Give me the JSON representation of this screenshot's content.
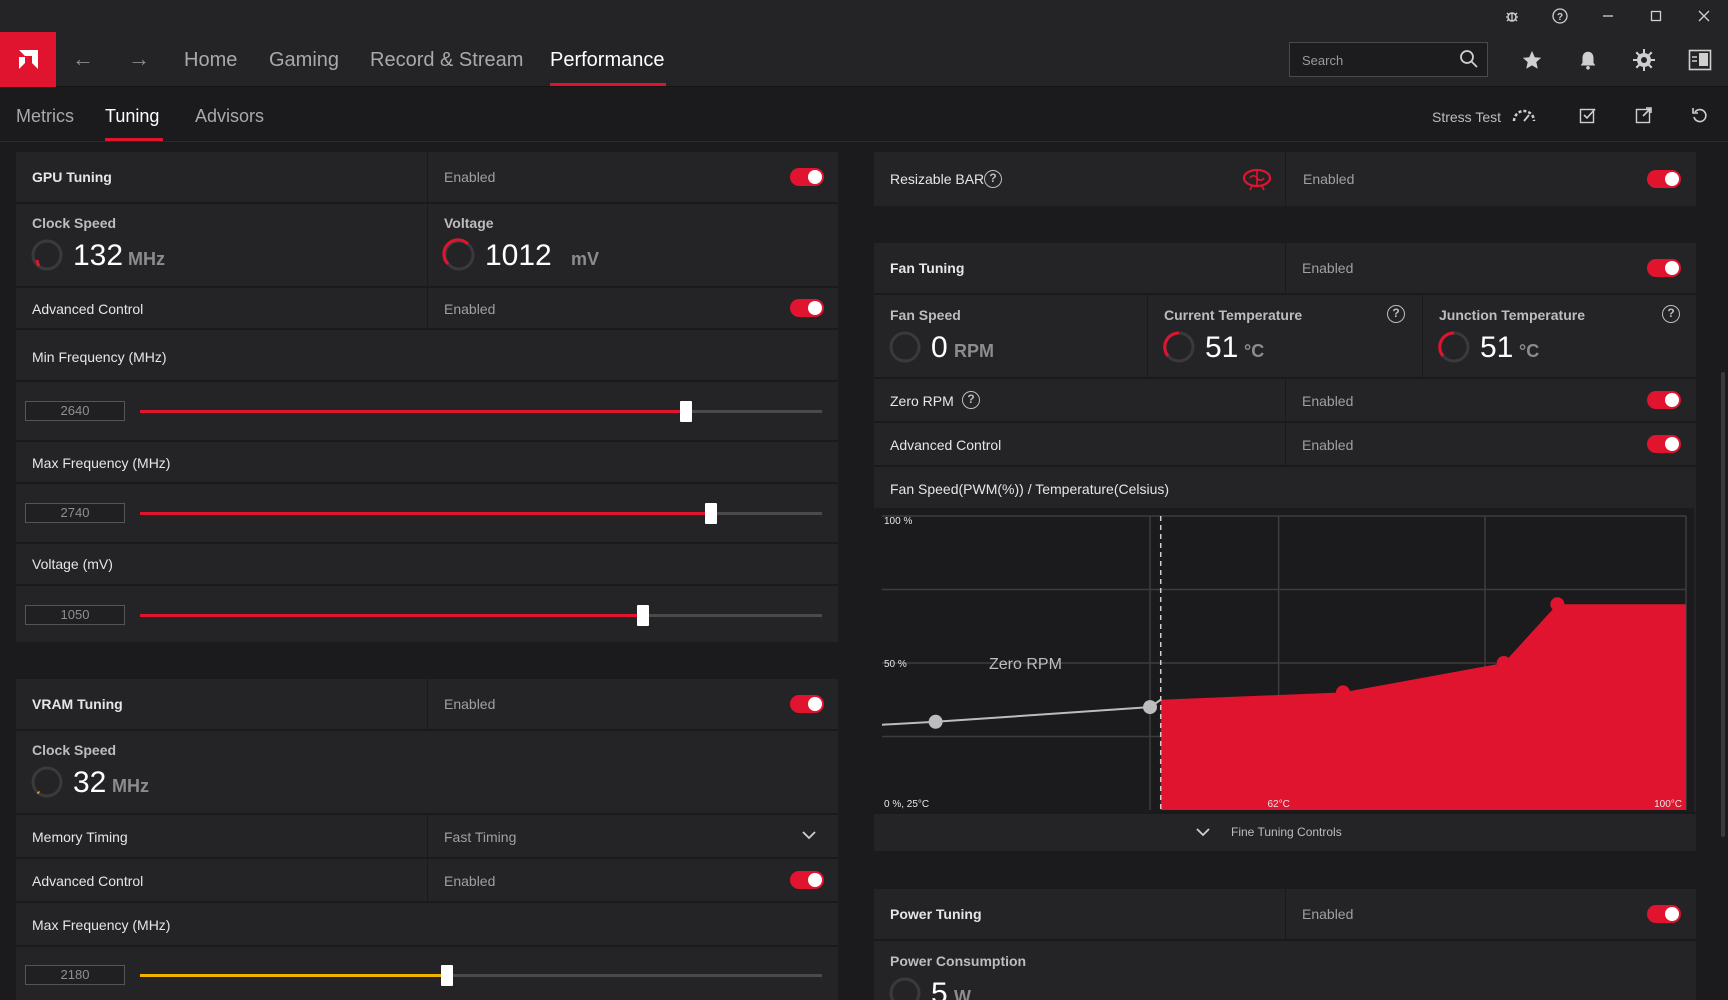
{
  "titlebar": {
    "icons": [
      "bug-icon",
      "help-icon",
      "minimize-icon",
      "maximize-icon",
      "close-icon"
    ]
  },
  "nav": {
    "tabs": [
      {
        "label": "Home"
      },
      {
        "label": "Gaming"
      },
      {
        "label": "Record & Stream"
      },
      {
        "label": "Performance"
      }
    ],
    "active_tab": "Performance",
    "search_placeholder": "Search",
    "icons": [
      "star-icon",
      "bell-icon",
      "gear-icon",
      "sidebar-icon"
    ]
  },
  "subnav": {
    "tabs": [
      {
        "label": "Metrics"
      },
      {
        "label": "Tuning"
      },
      {
        "label": "Advisors"
      }
    ],
    "active_tab": "Tuning",
    "stress_test_label": "Stress Test"
  },
  "gpu_tuning": {
    "title": "GPU Tuning",
    "status": "Enabled",
    "clock_speed": {
      "label": "Clock Speed",
      "value": "132",
      "unit": "MHz"
    },
    "voltage": {
      "label": "Voltage",
      "value": "1012",
      "unit": "mV"
    },
    "advanced_control": {
      "label": "Advanced Control",
      "status": "Enabled"
    },
    "min_frequency": {
      "label": "Min Frequency (MHz)",
      "value": "2640",
      "fraction": 0.8
    },
    "max_frequency": {
      "label": "Max Frequency (MHz)",
      "value": "2740",
      "fraction": 0.837
    },
    "voltage_slider": {
      "label": "Voltage (mV)",
      "value": "1050",
      "fraction": 0.737
    }
  },
  "vram_tuning": {
    "title": "VRAM Tuning",
    "status": "Enabled",
    "clock_speed": {
      "label": "Clock Speed",
      "value": "32",
      "unit": "MHz"
    },
    "memory_timing": {
      "label": "Memory Timing",
      "value": "Fast Timing"
    },
    "advanced_control": {
      "label": "Advanced Control",
      "status": "Enabled"
    },
    "max_frequency": {
      "label": "Max Frequency (MHz)",
      "value": "2180",
      "fraction": 0.45
    }
  },
  "resizable_bar": {
    "label": "Resizable BAR",
    "status": "Enabled"
  },
  "fan_tuning": {
    "title": "Fan Tuning",
    "status": "Enabled",
    "fan_speed": {
      "label": "Fan Speed",
      "value": "0",
      "unit": "RPM"
    },
    "current_temp": {
      "label": "Current Temperature",
      "value": "51",
      "unit": "°C"
    },
    "junction_temp": {
      "label": "Junction Temperature",
      "value": "51",
      "unit": "°C"
    },
    "zero_rpm": {
      "label": "Zero RPM",
      "status": "Enabled"
    },
    "advanced_control": {
      "label": "Advanced Control",
      "status": "Enabled"
    },
    "curve_title": "Fan Speed(PWM(%)) / Temperature(Celsius)",
    "fine_tuning_label": "Fine Tuning Controls"
  },
  "power_tuning": {
    "title": "Power Tuning",
    "status": "Enabled",
    "power_consumption": {
      "label": "Power Consumption",
      "value": "5",
      "unit": "W"
    }
  },
  "chart_data": {
    "type": "area",
    "title": "Fan Speed(PWM(%)) / Temperature(Celsius)",
    "xlabel": "",
    "ylabel": "",
    "x_range": [
      25,
      100
    ],
    "ylim": [
      0,
      100
    ],
    "tick_labels": {
      "origin": "0 %, 25°C",
      "y_mid": "50 %",
      "y_top": "100 %",
      "x_mid": "62°C",
      "x_end": "100°C"
    },
    "zero_rpm_label": "Zero RPM",
    "zero_rpm_until": 51,
    "points": [
      {
        "x": 30,
        "y": 30,
        "active": false
      },
      {
        "x": 50,
        "y": 35,
        "active": false
      },
      {
        "x": 68,
        "y": 40,
        "active": true
      },
      {
        "x": 83,
        "y": 50,
        "active": true
      },
      {
        "x": 88,
        "y": 70,
        "active": true
      }
    ],
    "grid": true,
    "colors": {
      "fill": "#e0142f",
      "inactive": "#bdbdbd",
      "grid": "#3c3c40"
    }
  },
  "colors": {
    "accent": "#e0142f",
    "vram_accent": "#f0b400",
    "panel": "#242427",
    "background": "#1b1b1d"
  }
}
